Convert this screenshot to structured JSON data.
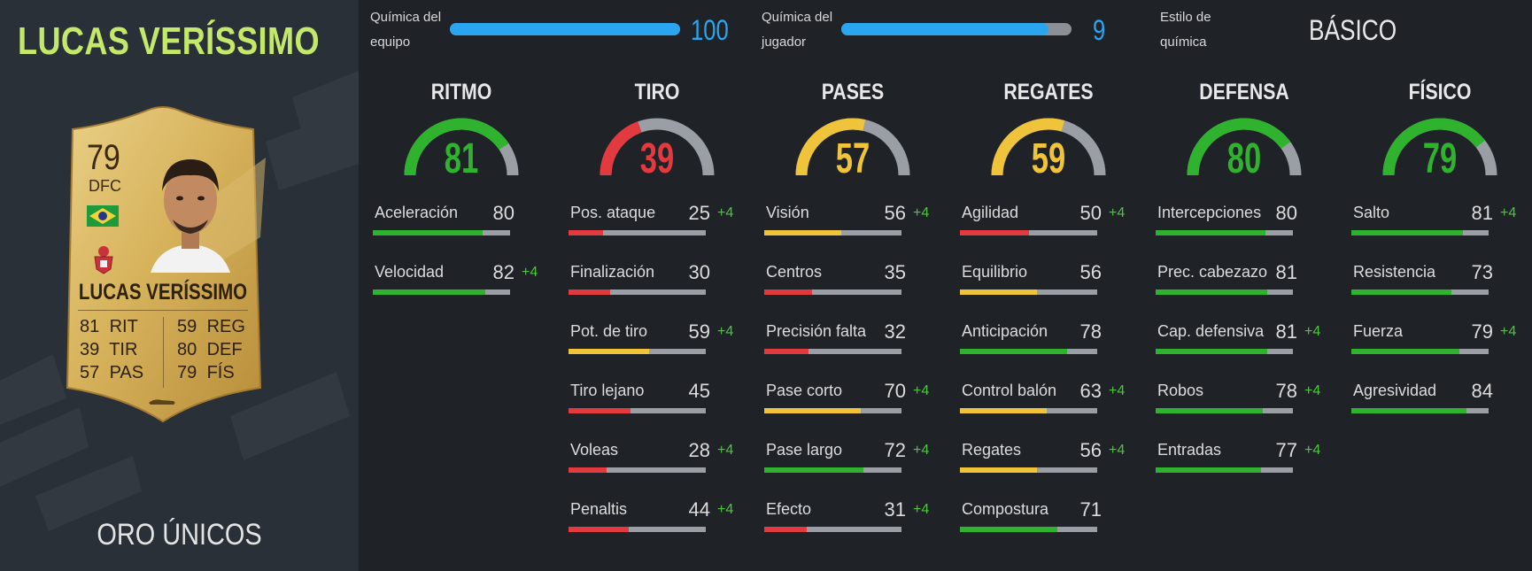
{
  "player": {
    "name": "LUCAS VERÍSSIMO",
    "card_type": "ORO ÚNICOS"
  },
  "card": {
    "rating": "79",
    "position": "DFC",
    "name": "LUCAS VERÍSSIMO",
    "stats": [
      {
        "value": "81",
        "label": "RIT"
      },
      {
        "value": "39",
        "label": "TIR"
      },
      {
        "value": "57",
        "label": "PAS"
      },
      {
        "value": "59",
        "label": "REG"
      },
      {
        "value": "80",
        "label": "DEF"
      },
      {
        "value": "79",
        "label": "FÍS"
      }
    ]
  },
  "chemistry": {
    "team_label": "Química del equipo",
    "team_value": "100",
    "team_fill": 1.0,
    "player_label": "Química del jugador",
    "player_value": "9",
    "player_fill": 0.9,
    "style_label": "Estilo de química",
    "style_value": "BÁSICO",
    "accent": "#2aa6f0"
  },
  "colors": {
    "green": "#2fb32f",
    "yellow": "#f0c43a",
    "red": "#e23a3f",
    "grey": "#9a9fa5",
    "title_green": "#c4e86a",
    "bonus": "#4cc73a"
  },
  "categories": [
    {
      "title": "RITMO",
      "value": "81",
      "level": 0.81,
      "color": "green",
      "attributes": [
        {
          "name": "Aceleración",
          "value": "80",
          "bonus": "",
          "level": 0.8,
          "color": "green"
        },
        {
          "name": "Velocidad",
          "value": "82",
          "bonus": "+4",
          "level": 0.82,
          "color": "green"
        }
      ]
    },
    {
      "title": "TIRO",
      "value": "39",
      "level": 0.39,
      "color": "red",
      "attributes": [
        {
          "name": "Pos. ataque",
          "value": "25",
          "bonus": "+4",
          "level": 0.25,
          "color": "red"
        },
        {
          "name": "Finalización",
          "value": "30",
          "bonus": "",
          "level": 0.3,
          "color": "red"
        },
        {
          "name": "Pot. de tiro",
          "value": "59",
          "bonus": "+4",
          "level": 0.59,
          "color": "yellow"
        },
        {
          "name": "Tiro lejano",
          "value": "45",
          "bonus": "",
          "level": 0.45,
          "color": "red"
        },
        {
          "name": "Voleas",
          "value": "28",
          "bonus": "+4",
          "level": 0.28,
          "color": "red"
        },
        {
          "name": "Penaltis",
          "value": "44",
          "bonus": "+4",
          "level": 0.44,
          "color": "red"
        }
      ]
    },
    {
      "title": "PASES",
      "value": "57",
      "level": 0.57,
      "color": "yellow",
      "attributes": [
        {
          "name": "Visión",
          "value": "56",
          "bonus": "+4",
          "level": 0.56,
          "color": "yellow"
        },
        {
          "name": "Centros",
          "value": "35",
          "bonus": "",
          "level": 0.35,
          "color": "red"
        },
        {
          "name": "Precisión falta",
          "value": "32",
          "bonus": "",
          "level": 0.32,
          "color": "red"
        },
        {
          "name": "Pase corto",
          "value": "70",
          "bonus": "+4",
          "level": 0.7,
          "color": "yellow"
        },
        {
          "name": "Pase largo",
          "value": "72",
          "bonus": "+4",
          "level": 0.72,
          "color": "green"
        },
        {
          "name": "Efecto",
          "value": "31",
          "bonus": "+4",
          "level": 0.31,
          "color": "red"
        }
      ]
    },
    {
      "title": "REGATES",
      "value": "59",
      "level": 0.59,
      "color": "yellow",
      "attributes": [
        {
          "name": "Agilidad",
          "value": "50",
          "bonus": "+4",
          "level": 0.5,
          "color": "red"
        },
        {
          "name": "Equilibrio",
          "value": "56",
          "bonus": "",
          "level": 0.56,
          "color": "yellow"
        },
        {
          "name": "Anticipación",
          "value": "78",
          "bonus": "",
          "level": 0.78,
          "color": "green"
        },
        {
          "name": "Control balón",
          "value": "63",
          "bonus": "+4",
          "level": 0.63,
          "color": "yellow"
        },
        {
          "name": "Regates",
          "value": "56",
          "bonus": "+4",
          "level": 0.56,
          "color": "yellow"
        },
        {
          "name": "Compostura",
          "value": "71",
          "bonus": "",
          "level": 0.71,
          "color": "green"
        }
      ]
    },
    {
      "title": "DEFENSA",
      "value": "80",
      "level": 0.8,
      "color": "green",
      "attributes": [
        {
          "name": "Intercepciones",
          "value": "80",
          "bonus": "",
          "level": 0.8,
          "color": "green"
        },
        {
          "name": "Prec. cabezazo",
          "value": "81",
          "bonus": "",
          "level": 0.81,
          "color": "green"
        },
        {
          "name": "Cap. defensiva",
          "value": "81",
          "bonus": "+4",
          "level": 0.81,
          "color": "green"
        },
        {
          "name": "Robos",
          "value": "78",
          "bonus": "+4",
          "level": 0.78,
          "color": "green"
        },
        {
          "name": "Entradas",
          "value": "77",
          "bonus": "+4",
          "level": 0.77,
          "color": "green"
        }
      ]
    },
    {
      "title": "FÍSICO",
      "value": "79",
      "level": 0.79,
      "color": "green",
      "attributes": [
        {
          "name": "Salto",
          "value": "81",
          "bonus": "+4",
          "level": 0.81,
          "color": "green"
        },
        {
          "name": "Resistencia",
          "value": "73",
          "bonus": "",
          "level": 0.73,
          "color": "green"
        },
        {
          "name": "Fuerza",
          "value": "79",
          "bonus": "+4",
          "level": 0.79,
          "color": "green"
        },
        {
          "name": "Agresividad",
          "value": "84",
          "bonus": "",
          "level": 0.84,
          "color": "green"
        }
      ]
    }
  ]
}
